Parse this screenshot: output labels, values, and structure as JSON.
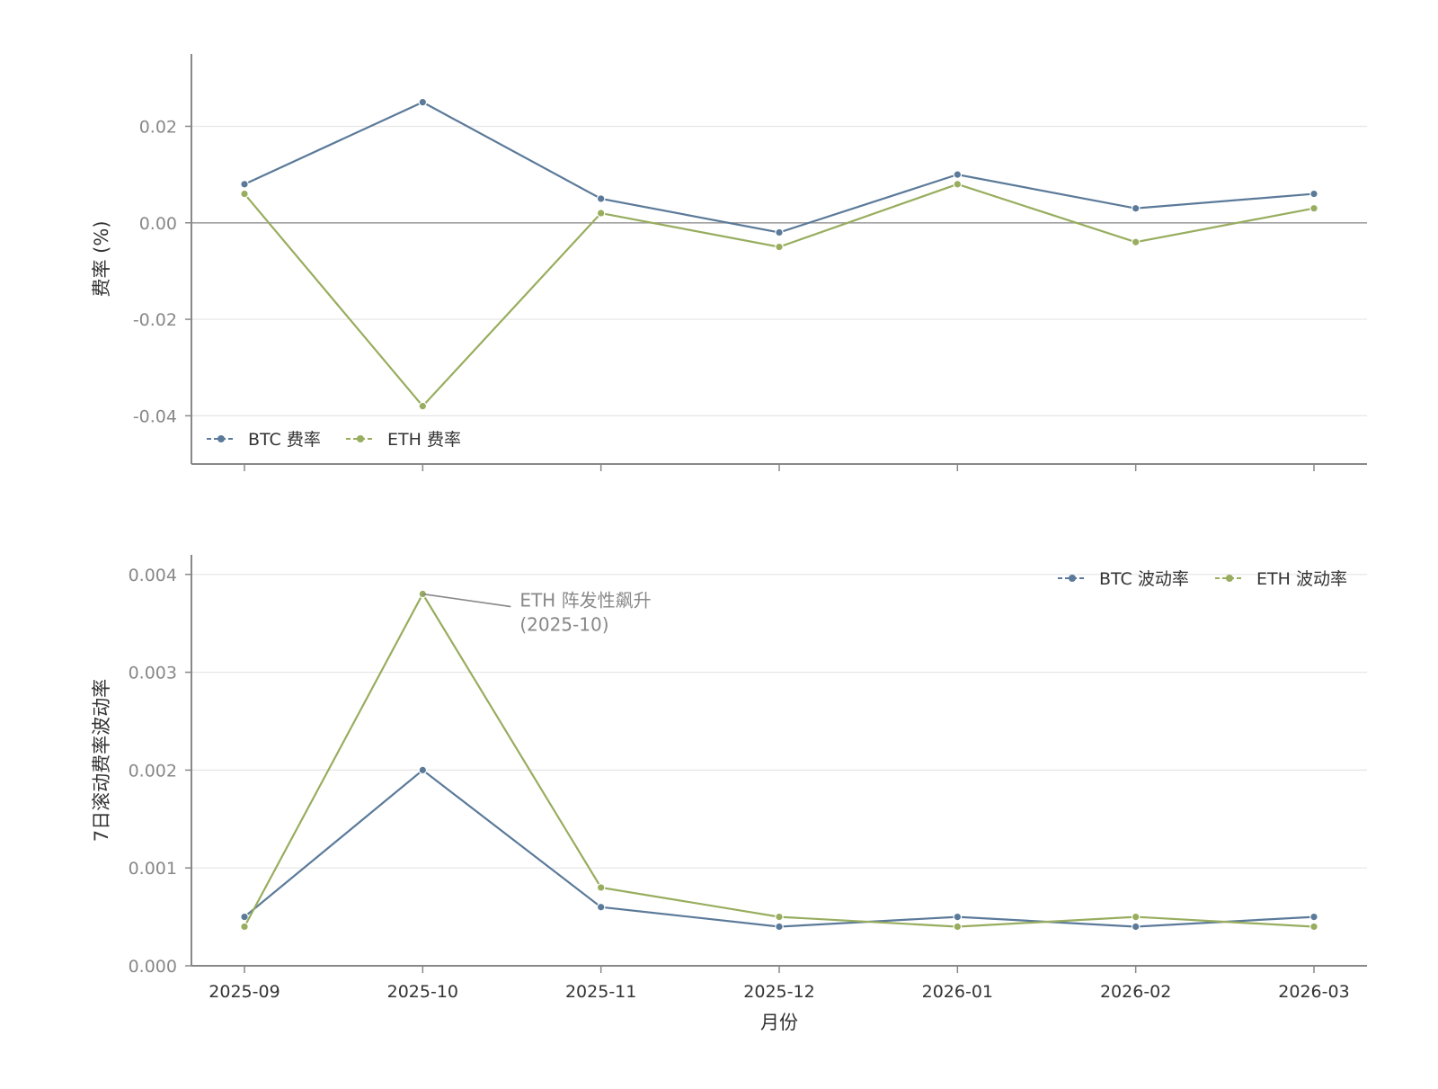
{
  "chart_data": [
    {
      "type": "line",
      "ylabel": "费率 (%)",
      "xlabel": "",
      "x": [
        "2025-09",
        "2025-10",
        "2025-11",
        "2025-12",
        "2026-01",
        "2026-02",
        "2026-03"
      ],
      "ylim": [
        -0.05,
        0.035
      ],
      "yticks": [
        0.02,
        0.0,
        -0.02,
        -0.04
      ],
      "ytick_labels": [
        "0.02",
        "0.00",
        "-0.02",
        "-0.04"
      ],
      "show_x_tick_labels": false,
      "grid": true,
      "zero_line": true,
      "legend_position": "lower-left",
      "series": [
        {
          "name": "BTC 费率",
          "color": "#5b7a99",
          "values": [
            0.008,
            0.025,
            0.005,
            -0.002,
            0.01,
            0.003,
            0.006
          ]
        },
        {
          "name": "ETH 费率",
          "color": "#98ad5e",
          "values": [
            0.006,
            -0.038,
            0.002,
            -0.005,
            0.008,
            -0.004,
            0.003
          ]
        }
      ]
    },
    {
      "type": "line",
      "ylabel": "7日滚动费率波动率",
      "xlabel": "月份",
      "x": [
        "2025-09",
        "2025-10",
        "2025-11",
        "2025-12",
        "2026-01",
        "2026-02",
        "2026-03"
      ],
      "ylim": [
        0.0,
        0.0042
      ],
      "yticks": [
        0.0,
        0.001,
        0.002,
        0.003,
        0.004
      ],
      "ytick_labels": [
        "0.000",
        "0.001",
        "0.002",
        "0.003",
        "0.004"
      ],
      "show_x_tick_labels": true,
      "grid": true,
      "zero_line": false,
      "legend_position": "top-right",
      "series": [
        {
          "name": "BTC 波动率",
          "color": "#5b7a99",
          "values": [
            0.0005,
            0.002,
            0.0006,
            0.0004,
            0.0005,
            0.0004,
            0.0005
          ]
        },
        {
          "name": "ETH 波动率",
          "color": "#98ad5e",
          "values": [
            0.0004,
            0.0038,
            0.0008,
            0.0005,
            0.0004,
            0.0005,
            0.0004
          ]
        }
      ],
      "annotation": {
        "lines": [
          "ETH 阵发性飙升",
          "(2025-10)"
        ],
        "x": "2025-10",
        "y": 0.0038,
        "color": "#888888"
      }
    }
  ]
}
